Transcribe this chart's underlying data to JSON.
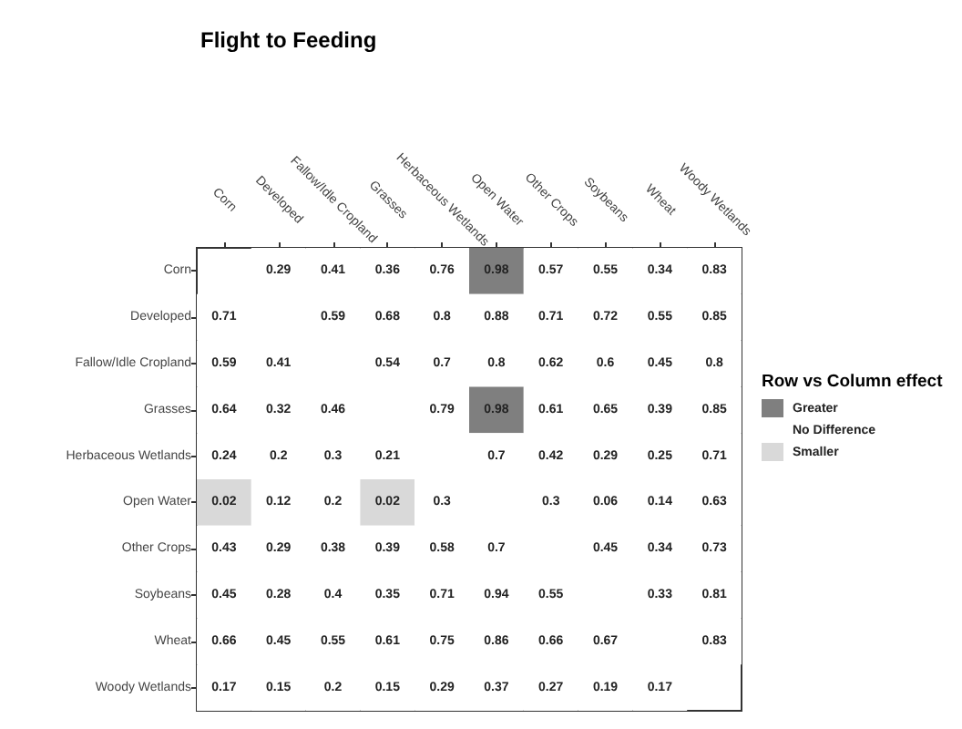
{
  "chart_data": {
    "type": "heatmap",
    "title": "Flight to Feeding",
    "data_labels": true,
    "annotations": [
      "Row vs Column effect",
      "Greater",
      "No Difference",
      "Smaller"
    ],
    "categories": [
      "Corn",
      "Developed",
      "Fallow/Idle Cropland",
      "Grasses",
      "Herbaceous Wetlands",
      "Open Water",
      "Other Crops",
      "Soybeans",
      "Wheat",
      "Woody Wetlands"
    ],
    "y_categories": [
      "Corn",
      "Developed",
      "Fallow/Idle Cropland",
      "Grasses",
      "Herbaceous Wetlands",
      "Open Water",
      "Other Crops",
      "Soybeans",
      "Wheat",
      "Woody Wetlands"
    ],
    "cells": [
      [
        null,
        0.29,
        0.41,
        0.36,
        0.76,
        0.98,
        0.57,
        0.55,
        0.34,
        0.83
      ],
      [
        0.71,
        null,
        0.59,
        0.68,
        0.8,
        0.88,
        0.71,
        0.72,
        0.55,
        0.85
      ],
      [
        0.59,
        0.41,
        null,
        0.54,
        0.7,
        0.8,
        0.62,
        0.6,
        0.45,
        0.8
      ],
      [
        0.64,
        0.32,
        0.46,
        null,
        0.79,
        0.98,
        0.61,
        0.65,
        0.39,
        0.85
      ],
      [
        0.24,
        0.2,
        0.3,
        0.21,
        null,
        0.7,
        0.42,
        0.29,
        0.25,
        0.71
      ],
      [
        0.02,
        0.12,
        0.2,
        0.02,
        0.3,
        null,
        0.3,
        0.06,
        0.14,
        0.63
      ],
      [
        0.43,
        0.29,
        0.38,
        0.39,
        0.58,
        0.7,
        null,
        0.45,
        0.34,
        0.73
      ],
      [
        0.45,
        0.28,
        0.4,
        0.35,
        0.71,
        0.94,
        0.55,
        null,
        0.33,
        0.81
      ],
      [
        0.66,
        0.45,
        0.55,
        0.61,
        0.75,
        0.86,
        0.66,
        0.67,
        null,
        0.83
      ],
      [
        0.17,
        0.15,
        0.2,
        0.15,
        0.29,
        0.37,
        0.27,
        0.19,
        0.17,
        null
      ]
    ],
    "colors": [
      [
        null,
        "#ffffff",
        "#ffffff",
        "#ffffff",
        "#ffffff",
        "#7f7f7f",
        "#ffffff",
        "#ffffff",
        "#ffffff",
        "#ffffff"
      ],
      [
        "#ffffff",
        null,
        "#ffffff",
        "#ffffff",
        "#ffffff",
        "#ffffff",
        "#ffffff",
        "#ffffff",
        "#ffffff",
        "#ffffff"
      ],
      [
        "#ffffff",
        "#ffffff",
        null,
        "#ffffff",
        "#ffffff",
        "#ffffff",
        "#ffffff",
        "#ffffff",
        "#ffffff",
        "#ffffff"
      ],
      [
        "#ffffff",
        "#ffffff",
        "#ffffff",
        null,
        "#ffffff",
        "#7f7f7f",
        "#ffffff",
        "#ffffff",
        "#ffffff",
        "#ffffff"
      ],
      [
        "#ffffff",
        "#ffffff",
        "#ffffff",
        "#ffffff",
        null,
        "#ffffff",
        "#ffffff",
        "#ffffff",
        "#ffffff",
        "#ffffff"
      ],
      [
        "#d9d9d9",
        "#ffffff",
        "#ffffff",
        "#d9d9d9",
        "#ffffff",
        null,
        "#ffffff",
        "#ffffff",
        "#ffffff",
        "#ffffff"
      ],
      [
        "#ffffff",
        "#ffffff",
        "#ffffff",
        "#ffffff",
        "#ffffff",
        "#ffffff",
        null,
        "#ffffff",
        "#ffffff",
        "#ffffff"
      ],
      [
        "#ffffff",
        "#ffffff",
        "#ffffff",
        "#ffffff",
        "#ffffff",
        "#ffffff",
        "#ffffff",
        null,
        "#ffffff",
        "#ffffff"
      ],
      [
        "#ffffff",
        "#ffffff",
        "#ffffff",
        "#ffffff",
        "#ffffff",
        "#ffffff",
        "#ffffff",
        "#ffffff",
        null,
        "#ffffff"
      ],
      [
        "#ffffff",
        "#ffffff",
        "#ffffff",
        "#ffffff",
        "#ffffff",
        "#ffffff",
        "#ffffff",
        "#ffffff",
        "#ffffff",
        null
      ]
    ]
  }
}
